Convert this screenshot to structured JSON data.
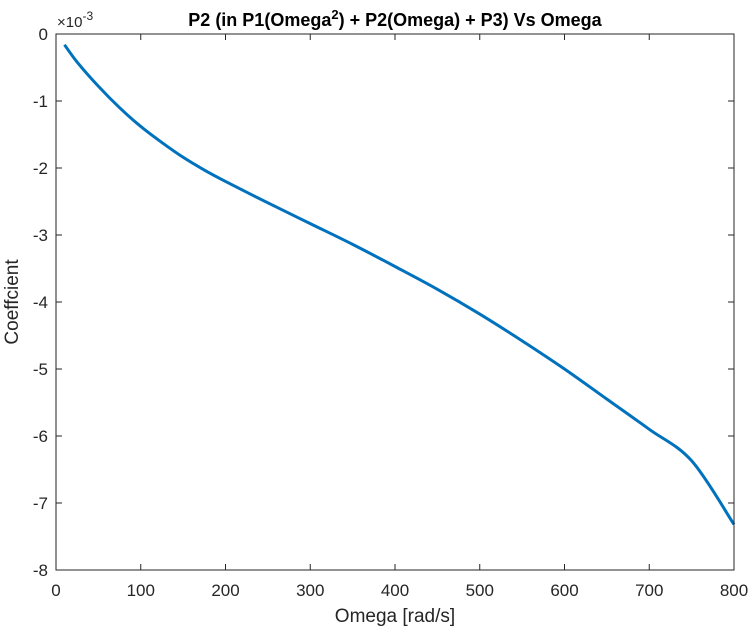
{
  "chart_data": {
    "type": "line",
    "title": {
      "part1": "P2 (in P1(Omega",
      "sup": "2",
      "part2": ") + P2(Omega) + P3) Vs Omega"
    },
    "xlabel": "Omega [rad/s]",
    "ylabel": "Coeffcient",
    "y_exponent": {
      "base": "×10",
      "power": "-3"
    },
    "xlim": [
      0,
      800
    ],
    "ylim": [
      -8,
      0
    ],
    "xticks": [
      0,
      100,
      200,
      300,
      400,
      500,
      600,
      700,
      800
    ],
    "yticks": [
      0,
      -1,
      -2,
      -3,
      -4,
      -5,
      -6,
      -7,
      -8
    ],
    "grid": false,
    "series": [
      {
        "color": "#0072BD",
        "x": [
          10,
          25,
          50,
          75,
          100,
          125,
          150,
          175,
          200,
          250,
          300,
          350,
          400,
          450,
          500,
          550,
          600,
          650,
          700,
          750,
          800
        ],
        "y": [
          -0.16,
          -0.42,
          -0.78,
          -1.1,
          -1.38,
          -1.62,
          -1.84,
          -2.03,
          -2.2,
          -2.52,
          -2.83,
          -3.14,
          -3.47,
          -3.81,
          -4.18,
          -4.58,
          -5.0,
          -5.45,
          -5.9,
          -6.37,
          -7.32
        ]
      }
    ]
  }
}
